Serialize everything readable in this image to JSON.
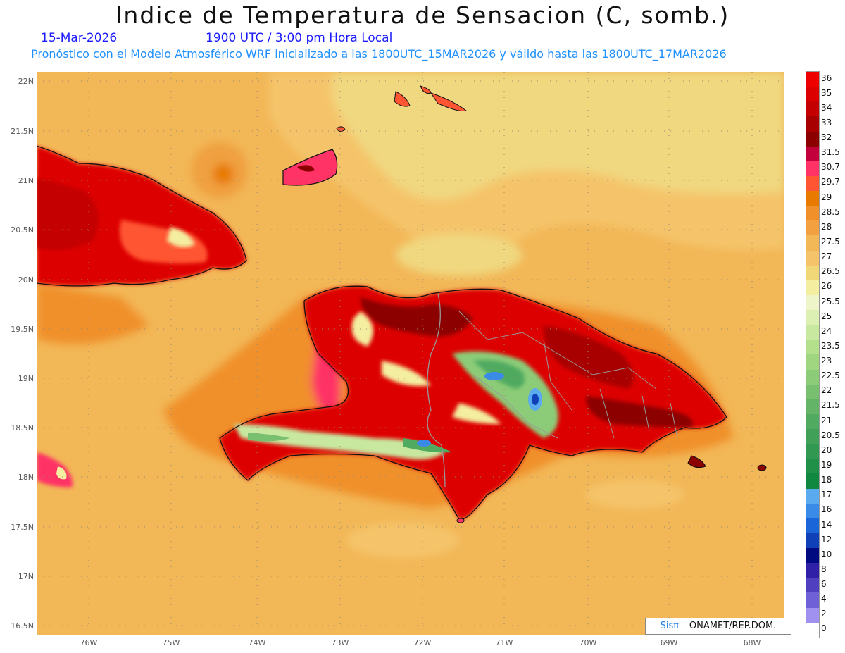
{
  "title": "Indice de Temperatura de Sensacion (C, somb.)",
  "date": "15-Mar-2026",
  "time": "1900 UTC / 3:00 pm Hora Local",
  "subtitle": "Pronóstico con el Modelo Atmosférico WRF inicializado a las 1800UTC_15MAR2026 y válido hasta las  1800UTC_17MAR2026",
  "credit_sis": "Sisπ",
  "credit_org": "– ONAMET/REP.DOM.",
  "lat_labels": [
    "22N",
    "21.5N",
    "21N",
    "20.5N",
    "20N",
    "19.5N",
    "19N",
    "18.5N",
    "18N",
    "17.5N",
    "17N",
    "16.5N"
  ],
  "lon_labels": [
    "76W",
    "75W",
    "74W",
    "73W",
    "72W",
    "71W",
    "70W",
    "69W",
    "68W"
  ],
  "legend": [
    {
      "label": "36",
      "color": "#ee0000"
    },
    {
      "label": "35",
      "color": "#dd0000"
    },
    {
      "label": "34",
      "color": "#c40000"
    },
    {
      "label": "33",
      "color": "#a80000"
    },
    {
      "label": "32",
      "color": "#8c0000"
    },
    {
      "label": "31.5",
      "color": "#c4003c"
    },
    {
      "label": "30.7",
      "color": "#ff3366"
    },
    {
      "label": "29.7",
      "color": "#ff5533"
    },
    {
      "label": "29",
      "color": "#e87a00"
    },
    {
      "label": "28.5",
      "color": "#f0902a"
    },
    {
      "label": "28",
      "color": "#f2a040"
    },
    {
      "label": "27.5",
      "color": "#f2b757"
    },
    {
      "label": "27",
      "color": "#f5c46a"
    },
    {
      "label": "26.5",
      "color": "#f0d878"
    },
    {
      "label": "26",
      "color": "#f4eea0"
    },
    {
      "label": "25.5",
      "color": "#eef5c8"
    },
    {
      "label": "25",
      "color": "#dcf0b4"
    },
    {
      "label": "24",
      "color": "#c8e8a0"
    },
    {
      "label": "23.5",
      "color": "#b4e08c"
    },
    {
      "label": "23",
      "color": "#a0d680"
    },
    {
      "label": "22.5",
      "color": "#8ccc78"
    },
    {
      "label": "22",
      "color": "#78c070"
    },
    {
      "label": "21.5",
      "color": "#64b468"
    },
    {
      "label": "21",
      "color": "#50aa60"
    },
    {
      "label": "20.5",
      "color": "#40a058"
    },
    {
      "label": "20",
      "color": "#309850"
    },
    {
      "label": "19",
      "color": "#209048"
    },
    {
      "label": "18",
      "color": "#108840"
    },
    {
      "label": "17",
      "color": "#5aaaf0"
    },
    {
      "label": "16",
      "color": "#3a8ae8"
    },
    {
      "label": "14",
      "color": "#1a66d8"
    },
    {
      "label": "12",
      "color": "#1040b8"
    },
    {
      "label": "10",
      "color": "#000a80"
    },
    {
      "label": "8",
      "color": "#3020a8"
    },
    {
      "label": "6",
      "color": "#5040c0"
    },
    {
      "label": "4",
      "color": "#7060d8"
    },
    {
      "label": "2",
      "color": "#a090f0"
    },
    {
      "label": "0",
      "color": "#ffffff"
    }
  ]
}
